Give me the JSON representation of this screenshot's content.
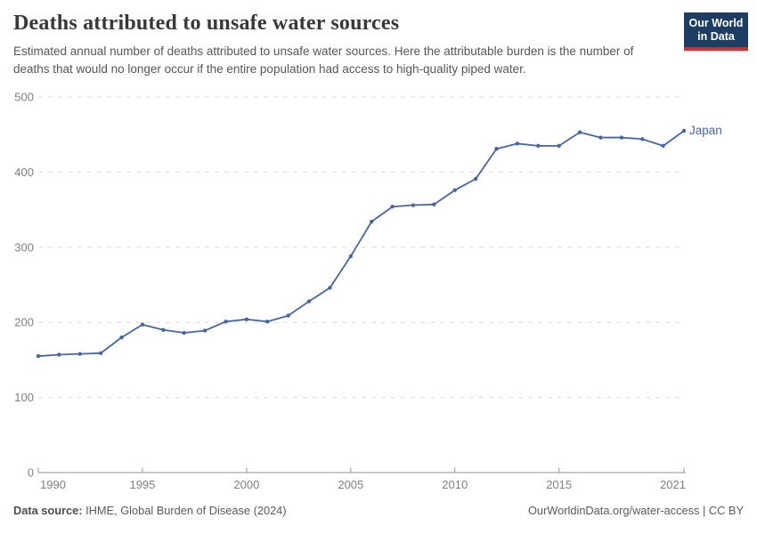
{
  "header": {
    "title": "Deaths attributed to unsafe water sources",
    "subtitle": "Estimated annual number of deaths attributed to unsafe water sources. Here the attributable burden is the number of deaths that would no longer occur if the entire population had access to high-quality piped water."
  },
  "logo": {
    "line1": "Our World",
    "line2": "in Data",
    "bg_color": "#1d3d63",
    "bar_color": "#d72d2d"
  },
  "chart_data": {
    "type": "line",
    "title": "Deaths attributed to unsafe water sources",
    "xlabel": "",
    "ylabel": "",
    "xlim": [
      1990,
      2021
    ],
    "ylim": [
      0,
      500
    ],
    "x_ticks": [
      1990,
      1995,
      2000,
      2005,
      2010,
      2015,
      2021
    ],
    "y_ticks": [
      0,
      100,
      200,
      300,
      400,
      500
    ],
    "grid": "horizontal-dashed",
    "legend_position": "end-of-line-label",
    "x": [
      1990,
      1991,
      1992,
      1993,
      1994,
      1995,
      1996,
      1997,
      1998,
      1999,
      2000,
      2001,
      2002,
      2003,
      2004,
      2005,
      2006,
      2007,
      2008,
      2009,
      2010,
      2011,
      2012,
      2013,
      2014,
      2015,
      2016,
      2017,
      2018,
      2019,
      2020,
      2021
    ],
    "series": [
      {
        "name": "Japan",
        "color": "#4865a3",
        "values": [
          155,
          157,
          158,
          159,
          180,
          197,
          190,
          186,
          189,
          201,
          204,
          201,
          209,
          228,
          246,
          288,
          334,
          354,
          356,
          357,
          376,
          391,
          431,
          438,
          435,
          435,
          453,
          446,
          446,
          444,
          435,
          455
        ]
      }
    ],
    "colors": {
      "grid": "#dcdcdc",
      "axis": "#969696",
      "tick_label": "#7f7f7f"
    }
  },
  "footer": {
    "source_label": "Data source:",
    "source_text": " IHME, Global Burden of Disease (2024)",
    "right_text": "OurWorldinData.org/water-access | CC BY"
  }
}
